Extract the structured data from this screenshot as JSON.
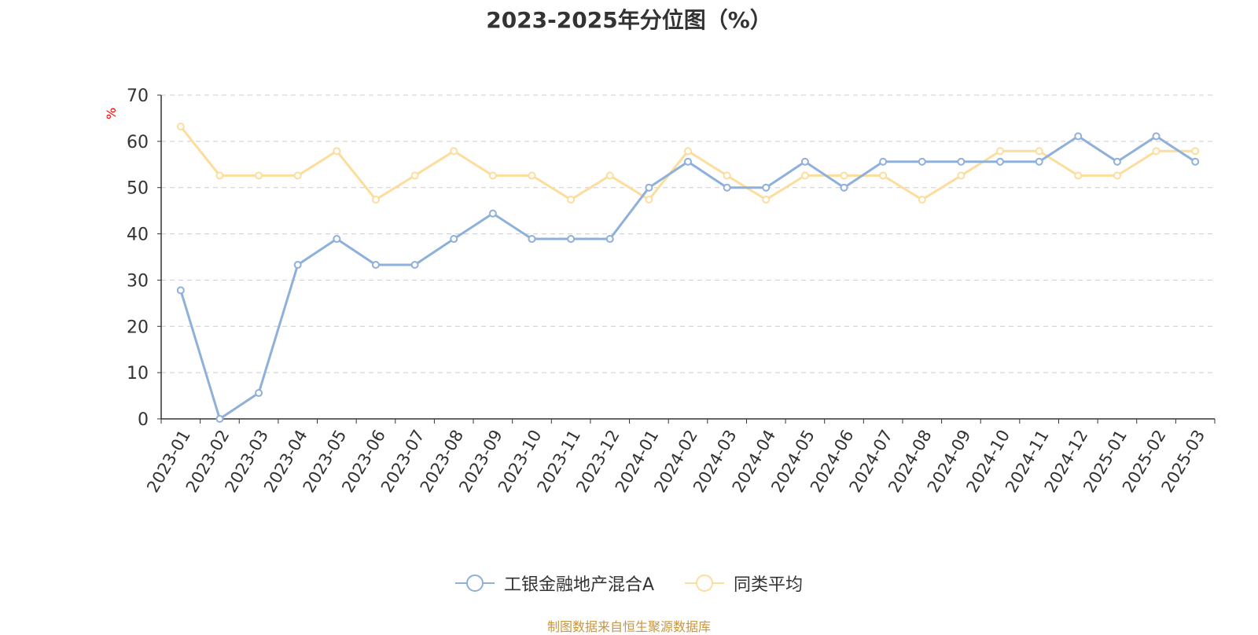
{
  "chart_data": {
    "type": "line",
    "title": "2023-2025年分位图（%）",
    "ylabel": "%",
    "ylim": [
      0,
      70
    ],
    "yticks": [
      0,
      10,
      20,
      30,
      40,
      50,
      60,
      70
    ],
    "grid": true,
    "legend_position": "bottom",
    "categories": [
      "2023-01",
      "2023-02",
      "2023-03",
      "2023-04",
      "2023-05",
      "2023-06",
      "2023-07",
      "2023-08",
      "2023-09",
      "2023-10",
      "2023-11",
      "2023-12",
      "2024-01",
      "2024-02",
      "2024-03",
      "2024-04",
      "2024-05",
      "2024-06",
      "2024-07",
      "2024-08",
      "2024-09",
      "2024-10",
      "2024-11",
      "2024-12",
      "2025-01",
      "2025-02",
      "2025-03"
    ],
    "series": [
      {
        "name": "工银金融地产混合A",
        "color": "#8eb0db",
        "values": [
          27.8,
          0,
          5.6,
          33.3,
          38.9,
          33.3,
          33.3,
          38.9,
          44.4,
          38.9,
          38.9,
          38.9,
          50,
          55.6,
          50,
          50,
          55.6,
          50,
          55.6,
          55.6,
          55.6,
          55.6,
          55.6,
          61.1,
          55.6,
          61.1,
          55.6
        ]
      },
      {
        "name": "同类平均",
        "color": "#fddd9c",
        "values": [
          63.2,
          52.6,
          52.6,
          52.6,
          57.9,
          47.4,
          52.6,
          57.9,
          52.6,
          52.6,
          47.4,
          52.6,
          47.4,
          57.9,
          52.6,
          47.4,
          52.6,
          52.6,
          52.6,
          47.4,
          52.6,
          57.9,
          57.9,
          52.6,
          52.6,
          57.9,
          57.9
        ]
      }
    ]
  },
  "colors": {
    "axis": "#333333",
    "grid": "#cccccc",
    "ylabel": "#ff0000",
    "source": "#c8963e"
  },
  "source_text": "制图数据来自恒生聚源数据库"
}
